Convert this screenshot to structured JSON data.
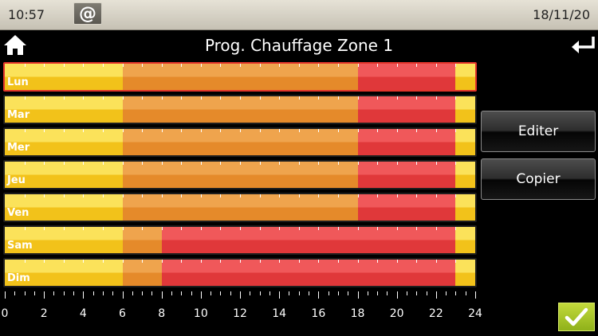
{
  "status_bar": {
    "time": "10:57",
    "date": "18/11/20",
    "at_label": "@"
  },
  "header": {
    "title": "Prog. Chauffage Zone 1"
  },
  "colors": {
    "comfort": "#f6d22a",
    "eco": "#e9922f",
    "heat": "#e8403f",
    "selected_border": "#e2342b",
    "ok_green": "#a9c62a"
  },
  "schedule": {
    "selected_day": "Lun",
    "days": [
      {
        "label": "Lun",
        "segments": [
          {
            "start": 0,
            "end": 6,
            "mode": "c"
          },
          {
            "start": 6,
            "end": 18,
            "mode": "e"
          },
          {
            "start": 18,
            "end": 23,
            "mode": "h"
          },
          {
            "start": 23,
            "end": 24,
            "mode": "c"
          }
        ]
      },
      {
        "label": "Mar",
        "segments": [
          {
            "start": 0,
            "end": 6,
            "mode": "c"
          },
          {
            "start": 6,
            "end": 18,
            "mode": "e"
          },
          {
            "start": 18,
            "end": 23,
            "mode": "h"
          },
          {
            "start": 23,
            "end": 24,
            "mode": "c"
          }
        ]
      },
      {
        "label": "Mer",
        "segments": [
          {
            "start": 0,
            "end": 6,
            "mode": "c"
          },
          {
            "start": 6,
            "end": 18,
            "mode": "e"
          },
          {
            "start": 18,
            "end": 23,
            "mode": "h"
          },
          {
            "start": 23,
            "end": 24,
            "mode": "c"
          }
        ]
      },
      {
        "label": "Jeu",
        "segments": [
          {
            "start": 0,
            "end": 6,
            "mode": "c"
          },
          {
            "start": 6,
            "end": 18,
            "mode": "e"
          },
          {
            "start": 18,
            "end": 23,
            "mode": "h"
          },
          {
            "start": 23,
            "end": 24,
            "mode": "c"
          }
        ]
      },
      {
        "label": "Ven",
        "segments": [
          {
            "start": 0,
            "end": 6,
            "mode": "c"
          },
          {
            "start": 6,
            "end": 18,
            "mode": "e"
          },
          {
            "start": 18,
            "end": 23,
            "mode": "h"
          },
          {
            "start": 23,
            "end": 24,
            "mode": "c"
          }
        ]
      },
      {
        "label": "Sam",
        "segments": [
          {
            "start": 0,
            "end": 6,
            "mode": "c"
          },
          {
            "start": 6,
            "end": 8,
            "mode": "e"
          },
          {
            "start": 8,
            "end": 23,
            "mode": "h"
          },
          {
            "start": 23,
            "end": 24,
            "mode": "c"
          }
        ]
      },
      {
        "label": "Dim",
        "segments": [
          {
            "start": 0,
            "end": 6,
            "mode": "c"
          },
          {
            "start": 6,
            "end": 8,
            "mode": "e"
          },
          {
            "start": 8,
            "end": 23,
            "mode": "h"
          },
          {
            "start": 23,
            "end": 24,
            "mode": "c"
          }
        ]
      }
    ],
    "scale_labels": [
      "0",
      "2",
      "4",
      "6",
      "8",
      "10",
      "12",
      "14",
      "16",
      "18",
      "20",
      "22",
      "24"
    ]
  },
  "buttons": {
    "edit": "Editer",
    "copy": "Copier"
  },
  "icons": {
    "home": "home-icon",
    "back": "return-arrow-icon",
    "ok": "checkmark-icon"
  }
}
